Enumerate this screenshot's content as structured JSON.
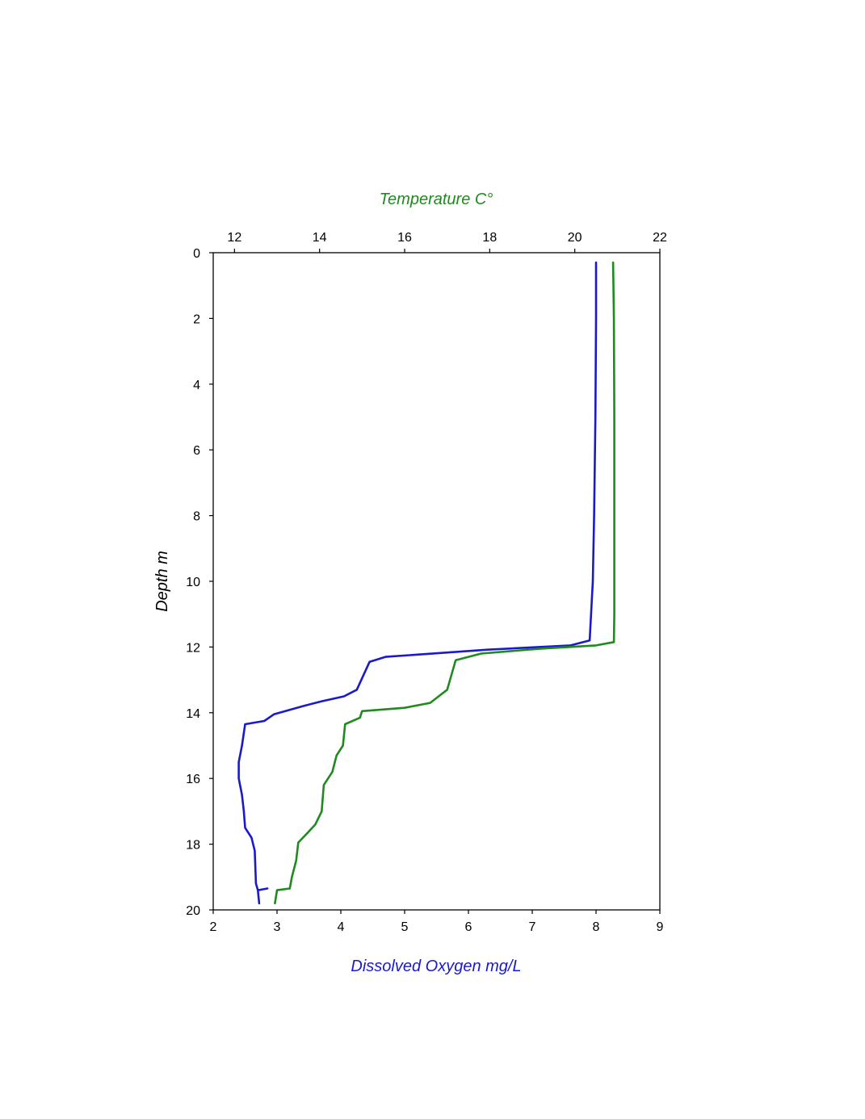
{
  "chart_data": {
    "type": "line",
    "top_axis": {
      "label": "Temperature C°",
      "color": "#1f8a1f",
      "range": [
        11.5,
        22
      ],
      "ticks": [
        12,
        14,
        16,
        18,
        20,
        22
      ]
    },
    "bottom_axis": {
      "label": "Dissolved Oxygen mg/L",
      "color": "#1a1acc",
      "range": [
        2,
        9
      ],
      "ticks": [
        2,
        3,
        4,
        5,
        6,
        7,
        8,
        9
      ]
    },
    "left_axis": {
      "label": "Depth m",
      "color": "#000000",
      "range": [
        0,
        20
      ],
      "inverted": true,
      "ticks": [
        0,
        2,
        4,
        6,
        8,
        10,
        12,
        14,
        16,
        18,
        20
      ]
    },
    "series": [
      {
        "axis": "bottom",
        "color": "#1a1acc",
        "points": [
          [
            8.0,
            0.3
          ],
          [
            8.0,
            2.0
          ],
          [
            7.99,
            5.0
          ],
          [
            7.97,
            8.0
          ],
          [
            7.95,
            10.0
          ],
          [
            7.9,
            11.8
          ],
          [
            7.6,
            11.95
          ],
          [
            6.3,
            12.08
          ],
          [
            4.7,
            12.3
          ],
          [
            4.45,
            12.45
          ],
          [
            4.25,
            13.3
          ],
          [
            4.05,
            13.5
          ],
          [
            3.7,
            13.65
          ],
          [
            3.4,
            13.8
          ],
          [
            2.95,
            14.05
          ],
          [
            2.8,
            14.25
          ],
          [
            2.5,
            14.35
          ],
          [
            2.45,
            15.0
          ],
          [
            2.4,
            15.5
          ],
          [
            2.4,
            16.0
          ],
          [
            2.45,
            16.5
          ],
          [
            2.48,
            17.0
          ],
          [
            2.5,
            17.5
          ],
          [
            2.6,
            17.8
          ],
          [
            2.65,
            18.2
          ],
          [
            2.67,
            19.2
          ],
          [
            2.7,
            19.4
          ],
          [
            2.85,
            19.35
          ],
          [
            2.7,
            19.4
          ],
          [
            2.72,
            19.8
          ]
        ]
      },
      {
        "axis": "top",
        "color": "#1f8a1f",
        "points": [
          [
            20.9,
            0.3
          ],
          [
            20.92,
            2.0
          ],
          [
            20.93,
            5.0
          ],
          [
            20.93,
            8.0
          ],
          [
            20.93,
            11.0
          ],
          [
            20.92,
            11.85
          ],
          [
            20.5,
            11.95
          ],
          [
            19.2,
            12.05
          ],
          [
            17.8,
            12.2
          ],
          [
            17.2,
            12.4
          ],
          [
            17.0,
            13.3
          ],
          [
            16.8,
            13.5
          ],
          [
            16.6,
            13.7
          ],
          [
            16.0,
            13.85
          ],
          [
            15.0,
            13.95
          ],
          [
            14.95,
            14.15
          ],
          [
            14.6,
            14.35
          ],
          [
            14.55,
            15.0
          ],
          [
            14.4,
            15.3
          ],
          [
            14.3,
            15.8
          ],
          [
            14.1,
            16.2
          ],
          [
            14.05,
            17.0
          ],
          [
            13.9,
            17.4
          ],
          [
            13.65,
            17.75
          ],
          [
            13.5,
            17.95
          ],
          [
            13.45,
            18.5
          ],
          [
            13.35,
            19.0
          ],
          [
            13.3,
            19.35
          ],
          [
            13.0,
            19.4
          ],
          [
            12.95,
            19.8
          ]
        ]
      }
    ]
  }
}
